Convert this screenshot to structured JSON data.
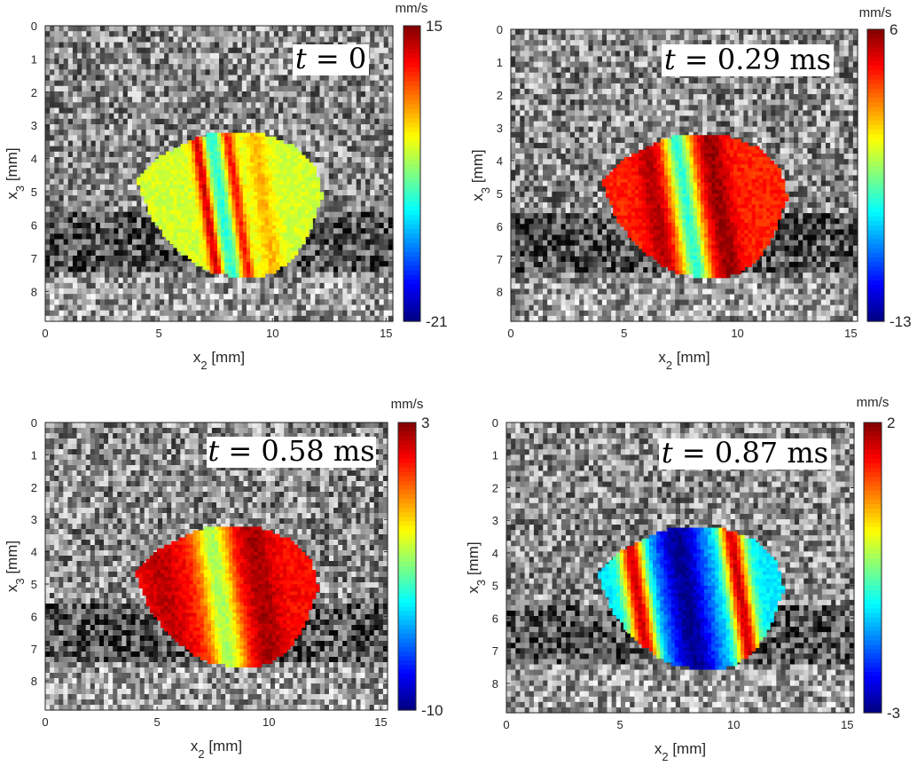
{
  "chart_data": [
    {
      "type": "heatmap",
      "time_label": "t = 0",
      "xlabel": "x2 [mm]",
      "ylabel": "x3 [mm]",
      "xlim": [
        0,
        15.3
      ],
      "ylim": [
        0,
        8.9
      ],
      "xticks": [
        "0",
        "5",
        "10",
        "15"
      ],
      "yticks": [
        "0",
        "1",
        "2",
        "3",
        "4",
        "5",
        "6",
        "7",
        "8"
      ],
      "colorbar": {
        "unit": "mm/s",
        "max": 15,
        "min": -21,
        "max_label": "15",
        "min_label": "-21",
        "colormap": "jet"
      },
      "inclusion_boundary": [
        [
          4,
          4.6
        ],
        [
          5,
          3.95
        ],
        [
          6.1,
          3.55
        ],
        [
          7.3,
          3.2
        ],
        [
          9.3,
          3.2
        ],
        [
          10.9,
          3.6
        ],
        [
          11.85,
          4.25
        ],
        [
          12.2,
          5.1
        ],
        [
          11.7,
          6.1
        ],
        [
          10.9,
          7.05
        ],
        [
          10,
          7.45
        ],
        [
          9.4,
          7.55
        ],
        [
          8.7,
          7.55
        ],
        [
          7.3,
          7.45
        ],
        [
          6.4,
          7.05
        ],
        [
          5.5,
          6.55
        ],
        [
          4.7,
          5.8
        ],
        [
          4.3,
          5.2
        ]
      ],
      "bands": [
        {
          "x2": 7.1,
          "w": 0.3,
          "value": 13
        },
        {
          "x2": 7.75,
          "w": 0.38,
          "value": -6
        },
        {
          "x2": 8.45,
          "w": 0.28,
          "value": 10
        },
        {
          "x2": 9.6,
          "w": 0.45,
          "value": 4
        }
      ],
      "background_value": 0
    },
    {
      "type": "heatmap",
      "time_label": "t = 0.29 ms",
      "xlabel": "x2 [mm]",
      "ylabel": "x3 [mm]",
      "xlim": [
        0,
        15.3
      ],
      "ylim": [
        0,
        8.9
      ],
      "xticks": [
        "0",
        "5",
        "10",
        "15"
      ],
      "yticks": [
        "0",
        "1",
        "2",
        "3",
        "4",
        "5",
        "6",
        "7",
        "8"
      ],
      "colorbar": {
        "unit": "mm/s",
        "max": 6,
        "min": -13,
        "max_label": "6",
        "min_label": "-13",
        "colormap": "jet"
      },
      "inclusion_boundary": [
        [
          4,
          4.6
        ],
        [
          5,
          3.95
        ],
        [
          6.1,
          3.55
        ],
        [
          7.3,
          3.2
        ],
        [
          9.3,
          3.2
        ],
        [
          10.9,
          3.6
        ],
        [
          11.85,
          4.25
        ],
        [
          12.2,
          5.1
        ],
        [
          11.7,
          6.1
        ],
        [
          10.9,
          7.05
        ],
        [
          10,
          7.45
        ],
        [
          9.4,
          7.55
        ],
        [
          8.7,
          7.55
        ],
        [
          7.3,
          7.45
        ],
        [
          6.4,
          7.05
        ],
        [
          5.5,
          6.55
        ],
        [
          4.7,
          5.8
        ],
        [
          4.3,
          5.2
        ]
      ],
      "bands": [
        {
          "x2": 6.4,
          "w": 0.6,
          "value": 5
        },
        {
          "x2": 7.75,
          "w": 0.6,
          "value": -5
        },
        {
          "x2": 9.2,
          "w": 0.6,
          "value": 5.5
        }
      ],
      "background_value": 3
    },
    {
      "type": "heatmap",
      "time_label": "t = 0.58 ms",
      "xlabel": "x2 [mm]",
      "ylabel": "x3 [mm]",
      "xlim": [
        0,
        15.3
      ],
      "ylim": [
        0,
        8.9
      ],
      "xticks": [
        "0",
        "5",
        "10",
        "15"
      ],
      "yticks": [
        "0",
        "1",
        "2",
        "3",
        "4",
        "5",
        "6",
        "7",
        "8"
      ],
      "colorbar": {
        "unit": "mm/s",
        "max": 3,
        "min": -10,
        "max_label": "3",
        "min_label": "-10",
        "colormap": "jet"
      },
      "inclusion_boundary": [
        [
          4,
          4.6
        ],
        [
          5,
          3.95
        ],
        [
          6.1,
          3.55
        ],
        [
          7.3,
          3.2
        ],
        [
          9.3,
          3.2
        ],
        [
          10.9,
          3.6
        ],
        [
          11.85,
          4.25
        ],
        [
          12.2,
          5.1
        ],
        [
          11.7,
          6.1
        ],
        [
          10.9,
          7.05
        ],
        [
          10,
          7.45
        ],
        [
          9.4,
          7.55
        ],
        [
          8.7,
          7.55
        ],
        [
          7.3,
          7.45
        ],
        [
          6.4,
          7.05
        ],
        [
          5.5,
          6.55
        ],
        [
          4.7,
          5.8
        ],
        [
          4.3,
          5.2
        ]
      ],
      "bands": [
        {
          "x2": 5.3,
          "w": 0.8,
          "value": 2.2
        },
        {
          "x2": 7.8,
          "w": 0.75,
          "value": -3
        },
        {
          "x2": 9.7,
          "w": 0.7,
          "value": 2.5
        }
      ],
      "background_value": 1.3
    },
    {
      "type": "heatmap",
      "time_label": "t = 0.87 ms",
      "xlabel": "x2 [mm]",
      "ylabel": "x3 [mm]",
      "xlim": [
        0,
        15.3
      ],
      "ylim": [
        0,
        8.9
      ],
      "xticks": [
        "0",
        "5",
        "10",
        "15"
      ],
      "yticks": [
        "0",
        "1",
        "2",
        "3",
        "4",
        "5",
        "6",
        "7",
        "8"
      ],
      "colorbar": {
        "unit": "mm/s",
        "max": 2,
        "min": -3,
        "max_label": "2",
        "min_label": "-3",
        "colormap": "jet"
      },
      "inclusion_boundary": [
        [
          4,
          4.6
        ],
        [
          5,
          3.95
        ],
        [
          6.1,
          3.55
        ],
        [
          7.3,
          3.2
        ],
        [
          9.3,
          3.2
        ],
        [
          10.9,
          3.6
        ],
        [
          11.85,
          4.25
        ],
        [
          12.2,
          5.1
        ],
        [
          11.7,
          6.1
        ],
        [
          10.9,
          7.05
        ],
        [
          10,
          7.45
        ],
        [
          9.4,
          7.55
        ],
        [
          8.7,
          7.55
        ],
        [
          7.3,
          7.45
        ],
        [
          6.4,
          7.05
        ],
        [
          5.5,
          6.55
        ],
        [
          4.7,
          5.8
        ],
        [
          4.3,
          5.2
        ]
      ],
      "bands": [
        {
          "x2": 5.8,
          "w": 0.55,
          "value": 1.7
        },
        {
          "x2": 7.9,
          "w": 1.1,
          "value": -2.9
        },
        {
          "x2": 10.3,
          "w": 0.5,
          "value": 1.6
        }
      ],
      "background_value": -1.2
    }
  ]
}
